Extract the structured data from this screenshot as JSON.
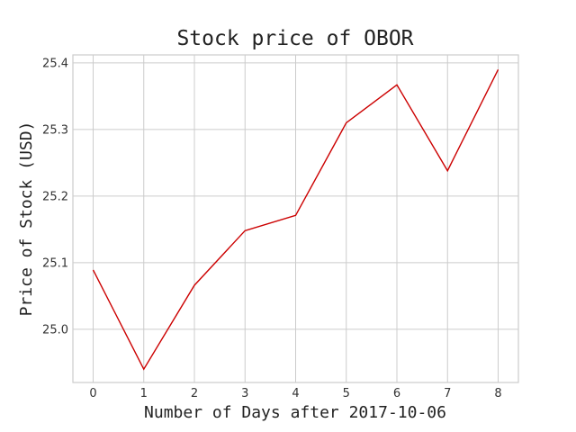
{
  "chart_data": {
    "type": "line",
    "title": "Stock price of OBOR",
    "xlabel": "Number of Days after 2017-10-06",
    "ylabel": "Price of Stock (USD)",
    "x": [
      0,
      1,
      2,
      3,
      4,
      5,
      6,
      7,
      8
    ],
    "xticks": [
      "0",
      "1",
      "2",
      "3",
      "4",
      "5",
      "6",
      "7",
      "8"
    ],
    "yticks": [
      "25.0",
      "25.1",
      "25.2",
      "25.3",
      "25.4"
    ],
    "ytick_values": [
      25.0,
      25.1,
      25.2,
      25.3,
      25.4
    ],
    "xlim": [
      -0.4,
      8.4
    ],
    "ylim": [
      24.92,
      25.412
    ],
    "grid": true,
    "series": [
      {
        "values": [
          25.089,
          24.94,
          25.066,
          25.148,
          25.171,
          25.31,
          25.367,
          25.238,
          25.39
        ],
        "color": "#cc0000"
      }
    ]
  }
}
